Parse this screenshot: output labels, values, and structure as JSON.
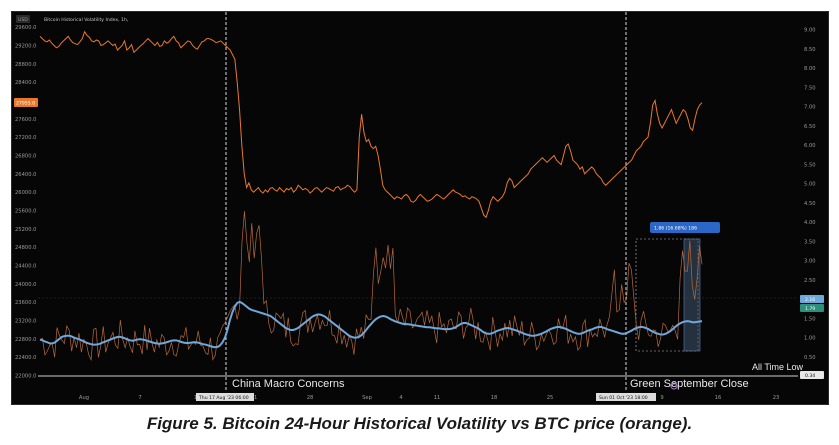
{
  "header": {
    "symbol_badge": "USD",
    "legend_text": "Bitcoin Historical Volatility Index, 1h,"
  },
  "caption": "Figure 5. Bitcoin  24-Hour Historical Volatility vs BTC price (orange).",
  "annotations": {
    "china": "China Macro Concerns",
    "green_sept": "Green September Close",
    "atl": "All Time Low",
    "measure": "1.86 (16.68%) 186"
  },
  "crosshair_labels": [
    "Thu 17 Aug '23 06:00",
    "Sun 01 Oct '23 18:00"
  ],
  "price_labels": {
    "price_badge": "27955.8",
    "vol_badge_1": "2.16",
    "vol_badge_2": "1.79",
    "vol_badge_3": "0.34"
  },
  "colors": {
    "price": "#e8782a",
    "volatility": "#6fa8dc",
    "hv_raw": "#b66a3a",
    "measure": "#4a7fd1",
    "background": "#060606"
  },
  "chart_data": {
    "type": "line",
    "title": "",
    "xlabel": "",
    "ylabel": "",
    "left_axis_ticks": [
      "29600.0",
      "29200.0",
      "28800.0",
      "28400.0",
      "28000.0",
      "27600.0",
      "27200.0",
      "26800.0",
      "26400.0",
      "26000.0",
      "25600.0",
      "25200.0",
      "24800.0",
      "24400.0",
      "24000.0",
      "23600.0",
      "23200.0",
      "22800.0",
      "22400.0",
      "22000.0"
    ],
    "right_axis_ticks": [
      "9.00",
      "8.50",
      "8.00",
      "7.50",
      "7.00",
      "6.50",
      "6.00",
      "5.50",
      "5.00",
      "4.50",
      "4.00",
      "3.50",
      "3.00",
      "2.50",
      "2.00",
      "1.50",
      "1.00",
      "0.50",
      "0.00"
    ],
    "x_ticks": [
      "Aug",
      "7",
      "14",
      "21",
      "28",
      "Sep",
      "4",
      "11",
      "18",
      "25",
      "Oct",
      "9",
      "16",
      "23"
    ],
    "left_ylim": [
      21900,
      29800
    ],
    "right_ylim": [
      -0.1,
      9.3
    ],
    "series": [
      {
        "axis": "left",
        "values": [
          29400,
          29350,
          29300,
          29280,
          29320,
          29250,
          29200,
          29150,
          29180,
          29250,
          29300,
          29350,
          29400,
          29320,
          29260,
          29240,
          29220,
          29280,
          29350,
          29500,
          29420,
          29380,
          29300,
          29280,
          29320,
          29300,
          29200,
          29220,
          29260,
          29300,
          29250,
          29200,
          29230,
          29100,
          29150,
          29200,
          29300,
          29100,
          29150,
          29220,
          29050,
          29100,
          29150,
          29200,
          29240,
          29300,
          29350,
          29300,
          29250,
          29200,
          29270,
          29180,
          29200,
          29300,
          29250,
          29280,
          29350,
          29400,
          29300,
          29260,
          29150,
          29200,
          29250,
          29300,
          29280,
          29200,
          29150,
          29120,
          29200,
          29280,
          29300,
          29350,
          29350,
          29330,
          29300,
          29260,
          29280,
          29300,
          29250,
          29200,
          29150,
          29100,
          29000,
          28900,
          28400,
          27800,
          27000,
          26400,
          26100,
          26200,
          26050,
          26000,
          26050,
          26100,
          26020,
          25980,
          26050,
          26000,
          26080,
          26100,
          26050,
          26020,
          26100,
          26050,
          26000,
          26080,
          26050,
          26100,
          26000,
          26050,
          26150,
          26100,
          26050,
          26080,
          26050,
          25980,
          26020,
          26080,
          26100,
          26050,
          26000,
          26050,
          26100,
          26080,
          26050,
          26020,
          26100,
          26120,
          26050,
          26080,
          26100,
          26150,
          26120,
          26050,
          26000,
          26050,
          27200,
          27700,
          27300,
          27100,
          27150,
          27000,
          26950,
          27000,
          26800,
          26500,
          26150,
          26050,
          26000,
          25950,
          25900,
          25850,
          25900,
          25880,
          25850,
          25920,
          25950,
          25900,
          25800,
          25780,
          25820,
          25900,
          25950,
          25900,
          25850,
          25800,
          25820,
          25850,
          25900,
          25950,
          25920,
          25880,
          25850,
          25900,
          25950,
          26000,
          26050,
          26000,
          25980,
          25950,
          25900,
          25920,
          25880,
          25850,
          25900,
          25880,
          25850,
          25800,
          25650,
          25500,
          25450,
          25600,
          25800,
          25900,
          25850,
          25800,
          25850,
          25900,
          26000,
          26200,
          26300,
          26250,
          26100,
          26150,
          26200,
          26250,
          26300,
          26350,
          26400,
          26500,
          26550,
          26600,
          26650,
          26700,
          26750,
          26700,
          26650,
          26700,
          26750,
          26800,
          26700,
          26650,
          26600,
          26800,
          27000,
          27050,
          26900,
          26700,
          26650,
          26600,
          26500,
          26550,
          26400,
          26450,
          26500,
          26550,
          26500,
          26400,
          26350,
          26300,
          26200,
          26150,
          26200,
          26250,
          26300,
          26350,
          26400,
          26450,
          26500,
          26550,
          26600,
          26650,
          26700,
          26800,
          26900,
          26950,
          27000,
          27100,
          27150,
          27200,
          27500,
          27900,
          28000,
          27700,
          27500,
          27400,
          27500,
          27600,
          27700,
          27800,
          27650,
          27500,
          27600,
          27700,
          27800,
          27750,
          27600,
          27400,
          27350,
          27600,
          27800,
          27900,
          27950
        ]
      },
      {
        "axis": "right",
        "name": "",
        "values": [
          0.95,
          0.93,
          0.9,
          0.88,
          0.85,
          0.85,
          0.87,
          0.92,
          0.97,
          1.02,
          1.04,
          1.05,
          1.05,
          1.03,
          1.0,
          0.98,
          0.96,
          0.93,
          0.9,
          0.87,
          0.85,
          0.83,
          0.82,
          0.82,
          0.83,
          0.85,
          0.88,
          0.9,
          0.93,
          0.95,
          0.98,
          1.0,
          1.02,
          1.02,
          1.0,
          0.98,
          0.95,
          0.93,
          0.92,
          0.93,
          0.95,
          0.96,
          0.95,
          0.94,
          0.92,
          0.9,
          0.88,
          0.86,
          0.85,
          0.84,
          0.85,
          0.86,
          0.88,
          0.9,
          0.92,
          0.93,
          0.93,
          0.91,
          0.89,
          0.87,
          0.86,
          0.86,
          0.87,
          0.88,
          0.88,
          0.87,
          0.85,
          0.83,
          0.82,
          0.8,
          0.78,
          0.76,
          0.75,
          0.76,
          0.8,
          0.88,
          1.0,
          1.2,
          1.45,
          1.65,
          1.8,
          1.9,
          1.93,
          1.9,
          1.85,
          1.8,
          1.75,
          1.72,
          1.7,
          1.68,
          1.66,
          1.64,
          1.62,
          1.6,
          1.58,
          1.55,
          1.5,
          1.45,
          1.4,
          1.35,
          1.3,
          1.25,
          1.22,
          1.2,
          1.2,
          1.22,
          1.25,
          1.3,
          1.35,
          1.4,
          1.45,
          1.5,
          1.55,
          1.58,
          1.6,
          1.6,
          1.58,
          1.55,
          1.5,
          1.45,
          1.4,
          1.35,
          1.3,
          1.25,
          1.2,
          1.15,
          1.1,
          1.05,
          1.02,
          1.0,
          1.0,
          1.02,
          1.06,
          1.12,
          1.2,
          1.28,
          1.35,
          1.42,
          1.48,
          1.52,
          1.55,
          1.56,
          1.55,
          1.52,
          1.48,
          1.45,
          1.42,
          1.4,
          1.38,
          1.36,
          1.35,
          1.35,
          1.34,
          1.33,
          1.32,
          1.31,
          1.3,
          1.29,
          1.28,
          1.27,
          1.27,
          1.26,
          1.25,
          1.24,
          1.24,
          1.23,
          1.22,
          1.22,
          1.22,
          1.23,
          1.25,
          1.28,
          1.32,
          1.36,
          1.38,
          1.38,
          1.36,
          1.33,
          1.3,
          1.27,
          1.24,
          1.2,
          1.15,
          1.12,
          1.1,
          1.1,
          1.12,
          1.15,
          1.18,
          1.2,
          1.22,
          1.24,
          1.25,
          1.24,
          1.22,
          1.2,
          1.18,
          1.15,
          1.13,
          1.1,
          1.08,
          1.06,
          1.05,
          1.05,
          1.06,
          1.08,
          1.1,
          1.13,
          1.16,
          1.2,
          1.23,
          1.25,
          1.27,
          1.28,
          1.27,
          1.25,
          1.23,
          1.2,
          1.17,
          1.14,
          1.12,
          1.1,
          1.1,
          1.12,
          1.15,
          1.18,
          1.2,
          1.22,
          1.25,
          1.27,
          1.28,
          1.27,
          1.25,
          1.22,
          1.2,
          1.18,
          1.16,
          1.14,
          1.12,
          1.1,
          1.1,
          1.12,
          1.15,
          1.18,
          1.22,
          1.25,
          1.27,
          1.28,
          1.27,
          1.25,
          1.22,
          1.18,
          1.15,
          1.12,
          1.1,
          1.08,
          1.08,
          1.1,
          1.13,
          1.17,
          1.22,
          1.28,
          1.33,
          1.37,
          1.4,
          1.42,
          1.43,
          1.42,
          1.4,
          1.4,
          1.41,
          1.42,
          1.43
        ]
      }
    ]
  }
}
